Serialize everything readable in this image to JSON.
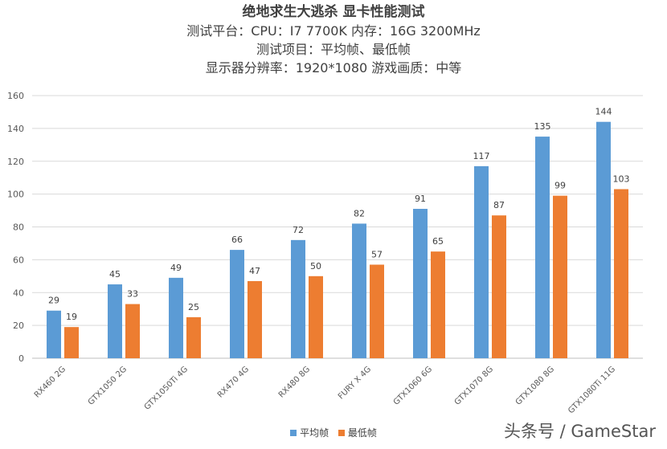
{
  "chart_data": {
    "type": "bar",
    "title": "绝地求生大逃杀  显卡性能测试",
    "subtitles": [
      "测试平台：CPU：I7 7700K  内存：16G 3200MHz",
      "测试项目：平均帧、最低帧",
      "显示器分辨率：1920*1080  游戏画质：中等"
    ],
    "categories": [
      "RX460 2G",
      "GTX1050 2G",
      "GTX1050Ti 4G",
      "RX470 4G",
      "RX480 8G",
      "FURY X 4G",
      "GTX1060 6G",
      "GTX1070 8G",
      "GTX1080 8G",
      "GTX1080Ti 11G"
    ],
    "series": [
      {
        "name": "平均帧",
        "color": "#5B9BD5",
        "values": [
          29,
          45,
          49,
          66,
          72,
          82,
          91,
          117,
          135,
          144
        ]
      },
      {
        "name": "最低帧",
        "color": "#ED7D31",
        "values": [
          19,
          33,
          25,
          47,
          50,
          57,
          65,
          87,
          99,
          103
        ]
      }
    ],
    "ylim": [
      0,
      160
    ],
    "yticks": [
      0,
      20,
      40,
      60,
      80,
      100,
      120,
      140,
      160
    ],
    "grid": true,
    "legend_position": "bottom"
  },
  "watermark": "头条号 / GameStar"
}
